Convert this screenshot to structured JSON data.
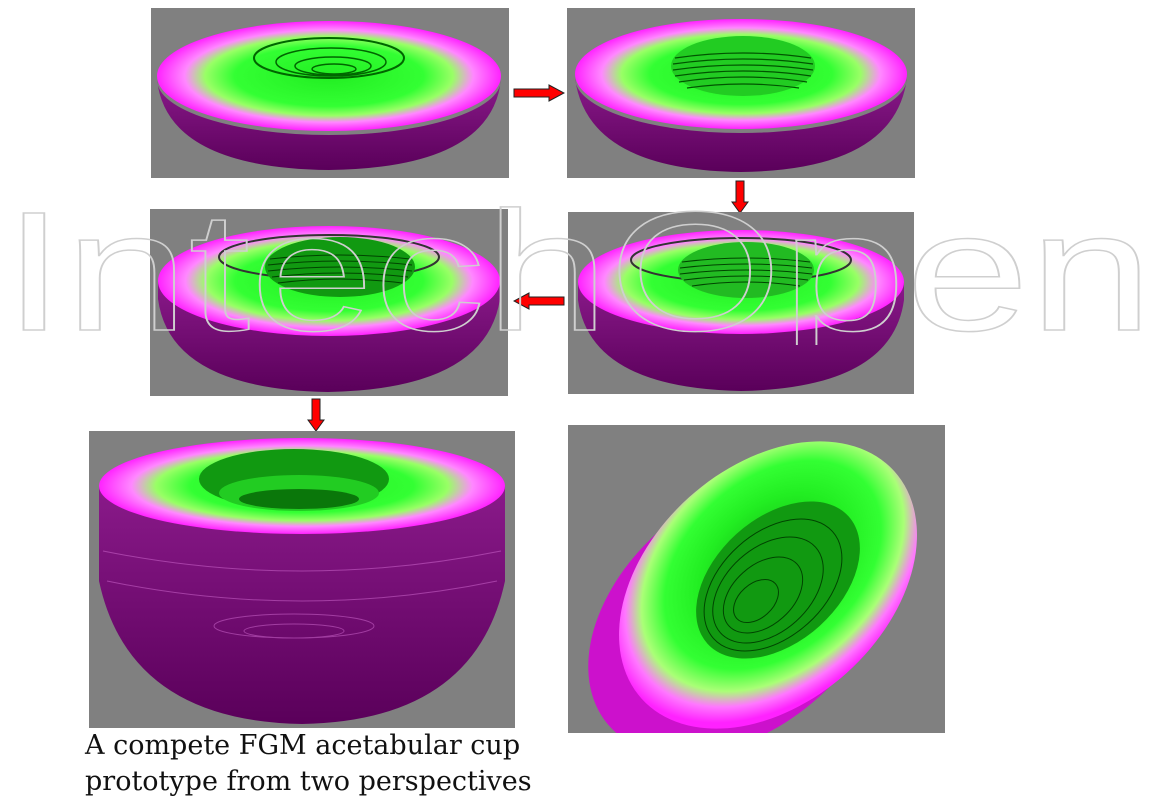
{
  "figure": {
    "caption_lines": [
      "A compete FGM acetabular cup",
      "prototype from two perspectives"
    ],
    "watermark_text": "IntechOpen",
    "colors": {
      "background": "#808080",
      "rim_magenta": "#ff33ff",
      "outer_shell_purple": "#660066",
      "inner_green": "#33ff33",
      "dark_green": "#006600",
      "arrow_red": "#ff0000",
      "watermark": "#dcdcdc"
    },
    "arrows": [
      {
        "direction": "right"
      },
      {
        "direction": "down"
      },
      {
        "direction": "left"
      },
      {
        "direction": "down"
      }
    ],
    "panels": [
      {
        "view": "step-1"
      },
      {
        "view": "step-2"
      },
      {
        "view": "step-3"
      },
      {
        "view": "step-4"
      },
      {
        "view": "complete-side"
      },
      {
        "view": "complete-tilted"
      }
    ]
  }
}
